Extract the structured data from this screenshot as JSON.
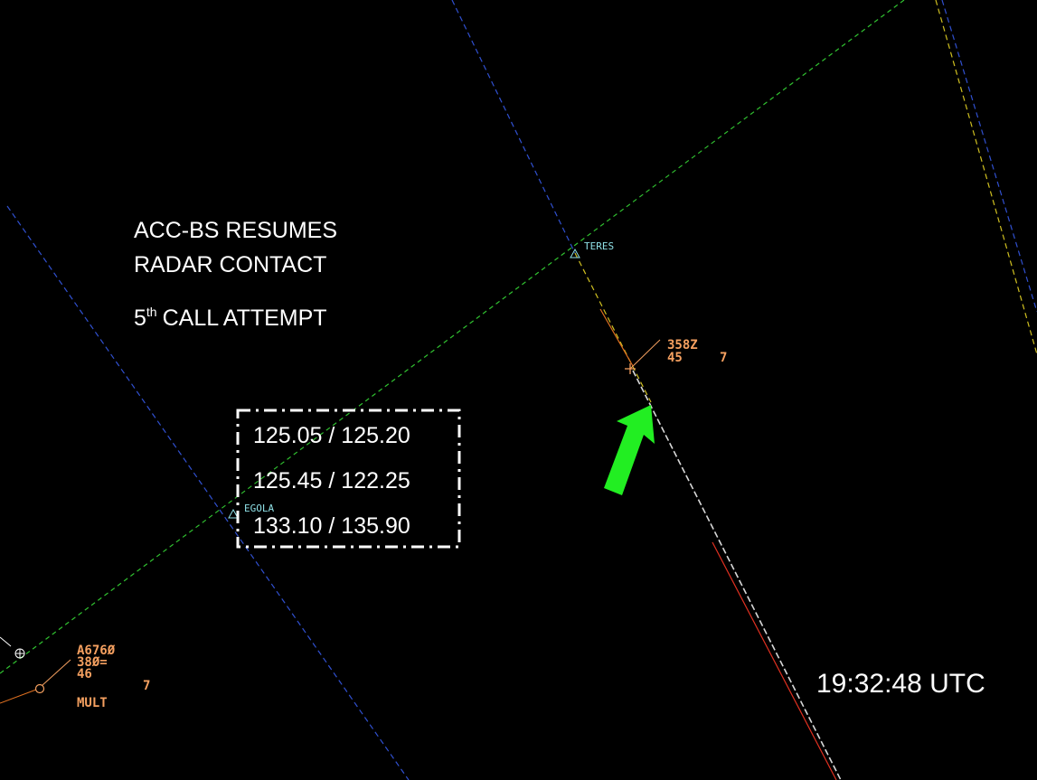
{
  "annotation": {
    "lines": [
      "ACC-BS RESUMES",
      "RADAR CONTACT"
    ],
    "call": {
      "ordinal": "5",
      "suffix": "th",
      "text": "CALL ATTEMPT"
    }
  },
  "frequencies": [
    "125.05 / 125.20",
    "125.45 / 122.25",
    "133.10 / 135.90"
  ],
  "waypoints": [
    {
      "name": "TERES"
    },
    {
      "name": "EGOLA"
    }
  ],
  "tracks": [
    {
      "lines": [
        "358Z",
        "45",
        "7"
      ]
    },
    {
      "lines": [
        "A676Ø",
        "38Ø=",
        "46",
        "7",
        "MULT"
      ]
    }
  ],
  "clock": "19:32:48 UTC"
}
